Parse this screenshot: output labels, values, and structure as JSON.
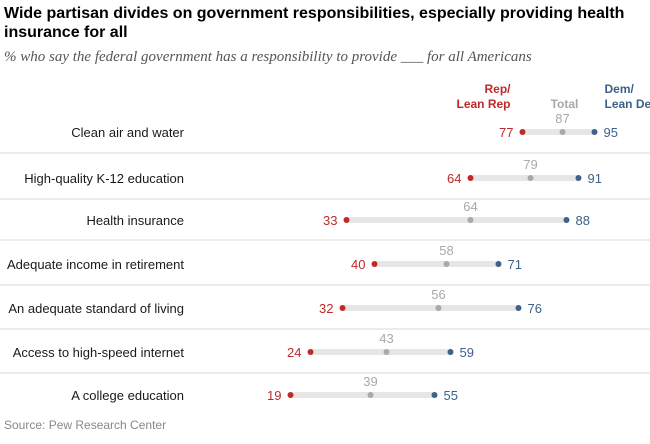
{
  "title": "Wide partisan divides on government responsibilities, especially providing health insurance for all",
  "subtitle": "% who say the federal government has a responsibility to provide ___ for all Americans",
  "source": "Source: Pew Research Center",
  "colors": {
    "rep": "#be2a2a",
    "total": "#a9a9a9",
    "dem": "#3d6189",
    "bar": "#e6e6e6",
    "divider": "#d9d9d9",
    "category": "#1a1a1a"
  },
  "chart_data": {
    "type": "dot",
    "legend": {
      "rep": [
        "Rep/",
        "Lean Rep"
      ],
      "total": [
        "Total"
      ],
      "dem": [
        "Dem/",
        "Lean Dem"
      ],
      "placement": "top-right"
    },
    "categories": [
      "Clean air and water",
      "High-quality K-12 education",
      "Health insurance",
      "Adequate income in retirement",
      "An adequate standard of living",
      "Access to high-speed internet",
      "A college education"
    ],
    "series": [
      {
        "name": "Rep/Lean Rep",
        "key": "rep",
        "values": [
          77,
          64,
          33,
          40,
          32,
          24,
          19
        ]
      },
      {
        "name": "Total",
        "key": "total",
        "values": [
          87,
          79,
          64,
          58,
          56,
          43,
          39
        ]
      },
      {
        "name": "Dem/Lean Dem",
        "key": "dem",
        "values": [
          95,
          91,
          88,
          71,
          76,
          59,
          55
        ]
      }
    ]
  }
}
